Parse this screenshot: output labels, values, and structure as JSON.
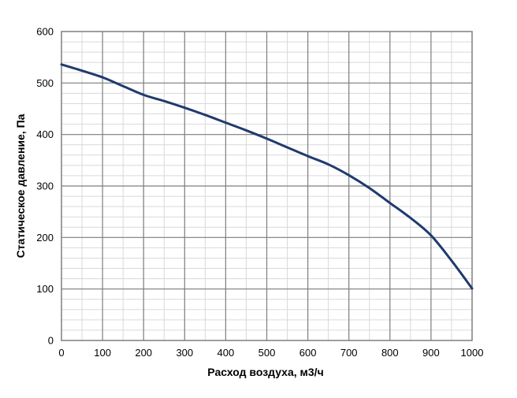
{
  "chart_data": {
    "type": "line",
    "xlabel": "Расход воздуха, м3/ч",
    "ylabel": "Статическое давление, Па",
    "xlim": [
      0,
      1000
    ],
    "ylim": [
      0,
      600
    ],
    "x_ticks": [
      "0",
      "100",
      "200",
      "300",
      "400",
      "500",
      "600",
      "700",
      "800",
      "900",
      "1000"
    ],
    "y_ticks": [
      "0",
      "100",
      "200",
      "300",
      "400",
      "500",
      "600"
    ],
    "grid": true,
    "minor_grid": true,
    "series": [
      {
        "color": "#1f3a6e",
        "x": [
          0,
          50,
          100,
          150,
          200,
          250,
          300,
          350,
          400,
          450,
          500,
          550,
          600,
          650,
          700,
          750,
          800,
          850,
          900,
          950,
          1000
        ],
        "y": [
          536,
          524,
          511,
          494,
          477,
          465,
          452,
          438,
          423,
          408,
          392,
          375,
          358,
          342,
          321,
          296,
          267,
          238,
          204,
          155,
          101
        ]
      }
    ]
  }
}
